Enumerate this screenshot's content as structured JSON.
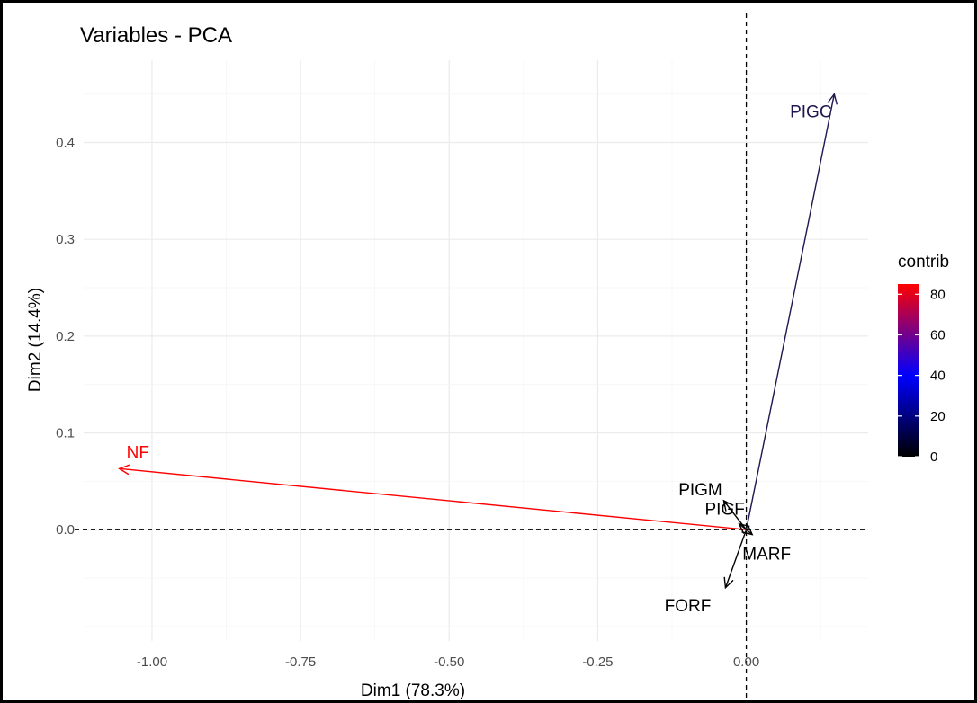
{
  "chart_data": {
    "type": "scatter",
    "subtype": "pca-variable-correlation-arrows",
    "title": "Variables - PCA",
    "xlabel": "Dim1 (78.3%)",
    "ylabel": "Dim2 (14.4%)",
    "xlim": [
      -1.115,
      0.205
    ],
    "ylim": [
      -0.115,
      0.485
    ],
    "xticks": [
      -1.0,
      -0.75,
      -0.5,
      -0.25,
      0.0
    ],
    "xtick_labels": [
      "-1.00",
      "-0.75",
      "-0.50",
      "-0.25",
      "0.00"
    ],
    "yticks": [
      0.0,
      0.1,
      0.2,
      0.3,
      0.4
    ],
    "ytick_labels": [
      "0.0",
      "0.1",
      "0.2",
      "0.3",
      "0.4"
    ],
    "grid": true,
    "reference_lines": {
      "x": 0,
      "y": 0,
      "style": "dashed"
    },
    "variables": [
      {
        "name": "NF",
        "x": -1.055,
        "y": 0.063,
        "contrib": 83,
        "color": "#ff0000"
      },
      {
        "name": "PIGC",
        "x": 0.148,
        "y": 0.45,
        "contrib": 15,
        "color": "#1f1650"
      },
      {
        "name": "PIGM",
        "x": -0.038,
        "y": 0.03,
        "contrib": 0,
        "color": "#000000"
      },
      {
        "name": "PIGF",
        "x": -0.012,
        "y": 0.006,
        "contrib": 0,
        "color": "#000000"
      },
      {
        "name": "MARF",
        "x": 0.01,
        "y": -0.005,
        "contrib": 0,
        "color": "#000000"
      },
      {
        "name": "FORF",
        "x": -0.035,
        "y": -0.06,
        "contrib": 1,
        "color": "#000000"
      }
    ],
    "legend": {
      "title": "contrib",
      "placement": "right",
      "type": "colorbar",
      "range": [
        0,
        85
      ],
      "ticks": [
        0,
        20,
        40,
        60,
        80
      ],
      "tick_labels": [
        "0",
        "20",
        "40",
        "60",
        "80"
      ],
      "gradient": [
        "#000000",
        "#0000ff",
        "#ff0000"
      ]
    }
  }
}
